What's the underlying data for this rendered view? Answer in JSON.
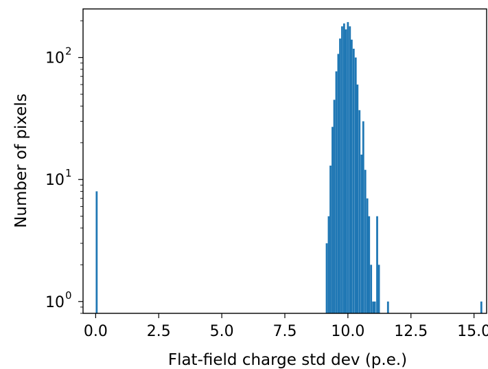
{
  "chart_data": {
    "type": "bar",
    "title": "",
    "xlabel": "Flat-field charge std dev (p.e.)",
    "ylabel": "Number of pixels",
    "xlim": [
      -0.5,
      15.5
    ],
    "ylim": [
      0.8,
      250
    ],
    "yscale": "log",
    "grid": false,
    "bar_color": "#1f77b4",
    "x_ticks": [
      {
        "value": 0.0,
        "label": "0.0"
      },
      {
        "value": 2.5,
        "label": "2.5"
      },
      {
        "value": 5.0,
        "label": "5.0"
      },
      {
        "value": 7.5,
        "label": "7.5"
      },
      {
        "value": 10.0,
        "label": "10.0"
      },
      {
        "value": 12.5,
        "label": "12.5"
      },
      {
        "value": 15.0,
        "label": "15.0"
      }
    ],
    "y_ticks": [
      {
        "value": 1,
        "label": "10",
        "exponent": "0"
      },
      {
        "value": 10,
        "label": "10",
        "exponent": "1"
      },
      {
        "value": 100,
        "label": "10",
        "exponent": "2"
      }
    ],
    "bin_width": 0.076,
    "bins": [
      {
        "x": 0.04,
        "count": 8
      },
      {
        "x": 9.16,
        "count": 3
      },
      {
        "x": 9.24,
        "count": 5
      },
      {
        "x": 9.31,
        "count": 13
      },
      {
        "x": 9.39,
        "count": 27
      },
      {
        "x": 9.46,
        "count": 45
      },
      {
        "x": 9.54,
        "count": 77
      },
      {
        "x": 9.62,
        "count": 107
      },
      {
        "x": 9.69,
        "count": 143
      },
      {
        "x": 9.77,
        "count": 180
      },
      {
        "x": 9.85,
        "count": 190
      },
      {
        "x": 9.92,
        "count": 170
      },
      {
        "x": 10.0,
        "count": 195
      },
      {
        "x": 10.08,
        "count": 180
      },
      {
        "x": 10.15,
        "count": 140
      },
      {
        "x": 10.23,
        "count": 118
      },
      {
        "x": 10.31,
        "count": 100
      },
      {
        "x": 10.38,
        "count": 60
      },
      {
        "x": 10.46,
        "count": 37
      },
      {
        "x": 10.54,
        "count": 16
      },
      {
        "x": 10.61,
        "count": 30
      },
      {
        "x": 10.69,
        "count": 12
      },
      {
        "x": 10.77,
        "count": 7
      },
      {
        "x": 10.84,
        "count": 5
      },
      {
        "x": 10.92,
        "count": 2
      },
      {
        "x": 11.0,
        "count": 1
      },
      {
        "x": 11.07,
        "count": 1
      },
      {
        "x": 11.16,
        "count": 5
      },
      {
        "x": 11.23,
        "count": 2
      },
      {
        "x": 11.59,
        "count": 1
      },
      {
        "x": 15.29,
        "count": 1
      }
    ]
  }
}
